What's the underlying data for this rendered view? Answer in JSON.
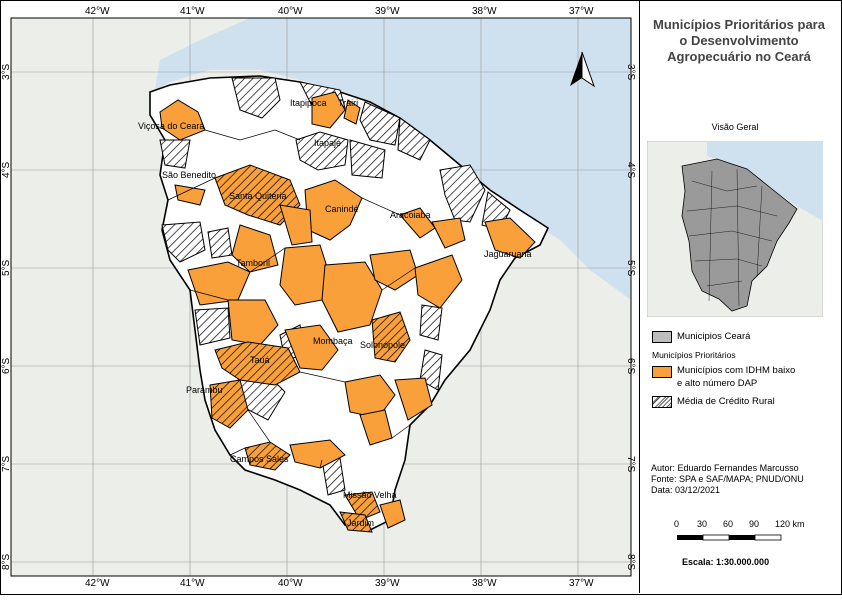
{
  "map": {
    "longitudes_top": [
      "42°W",
      "41°W",
      "40°W",
      "39°W",
      "38°W",
      "37°W"
    ],
    "longitudes_bottom": [
      "42°W",
      "41°W",
      "40°W",
      "39°W",
      "38°W",
      "37°W"
    ],
    "latitudes_left": [
      "3°S",
      "4°S",
      "5°S",
      "6°S",
      "7°S",
      "8°S"
    ],
    "latitudes_right": [
      "3°S",
      "4°S",
      "5°S",
      "6°S",
      "7°S",
      "8°S"
    ],
    "municipality_labels": [
      "Itapipoca",
      "Trairi",
      "Viçosa do Ceará",
      "Itapajé",
      "São Benedito",
      "Santa Quitéria",
      "Canindé",
      "Aracoiaba",
      "Jaguaruana",
      "Tamboril",
      "Mombaça",
      "Solonópole",
      "Tauá",
      "Parambu",
      "Campos Sales",
      "Missão Velha",
      "Jardim"
    ],
    "colors": {
      "sea": "#cfe0ee",
      "land": "#eceee9",
      "state": "#ffffff",
      "priority": "#f9a03a",
      "border": "#000000",
      "grid": "#9a9a9a"
    }
  },
  "panel": {
    "title": "Municípios Prioritários para o Desenvolvimento Agropecuário no Ceará",
    "overview_title": "Visão Geral",
    "legend": {
      "state_label": "Municipios Ceará",
      "group_heading": "Municípios Prioritários",
      "priority_label_line1": "Municípios com IDHM baixo",
      "priority_label_line2": "e alto número DAP",
      "hatch_label": "Média de Crédito Rural"
    },
    "credits": {
      "author": "Autor: Eduardo Fernandes Marcusso",
      "source": "Fonte: SPA e SAF/MAPA; PNUD/ONU",
      "date": "Data: 03/12/2021"
    },
    "scalebar": {
      "ticks": [
        "0",
        "30",
        "60",
        "90",
        "120 km"
      ],
      "scale": "Escala: 1:30.000.000"
    }
  }
}
